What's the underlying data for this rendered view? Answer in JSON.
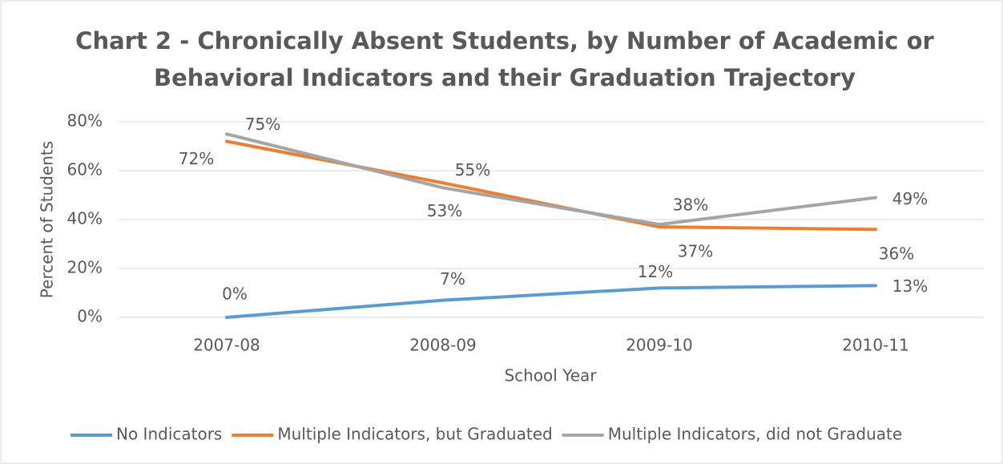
{
  "chart_data": {
    "type": "line",
    "title": [
      "Chart 2 - Chronically Absent Students, by Number of Academic or",
      "Behavioral Indicators and their Graduation Trajectory"
    ],
    "x_label": "School Year",
    "y_label": "Percent of Students",
    "categories": [
      "2007-08",
      "2008-09",
      "2009-10",
      "2010-11"
    ],
    "series": [
      {
        "name": "No Indicators",
        "color": "#5b9bd5",
        "values": [
          0,
          7,
          12,
          13
        ],
        "value_labels": [
          "0%",
          "7%",
          "12%",
          "13%"
        ]
      },
      {
        "name": "Multiple Indicators, but Graduated",
        "color": "#ed7d31",
        "values": [
          72,
          55,
          37,
          36
        ],
        "value_labels": [
          "72%",
          "55%",
          "37%",
          "36%"
        ]
      },
      {
        "name": "Multiple Indicators, did not Graduate",
        "color": "#a5a5a5",
        "values": [
          75,
          53,
          38,
          49
        ],
        "value_labels": [
          "75%",
          "53%",
          "38%",
          "49%"
        ]
      }
    ],
    "ylim": [
      0,
      80
    ],
    "yticks": [
      {
        "value": 0,
        "label": "0%"
      },
      {
        "value": 20,
        "label": "20%"
      },
      {
        "value": 40,
        "label": "40%"
      },
      {
        "value": 60,
        "label": "60%"
      },
      {
        "value": 80,
        "label": "80%"
      }
    ],
    "grid": true,
    "legend": "bottom"
  }
}
